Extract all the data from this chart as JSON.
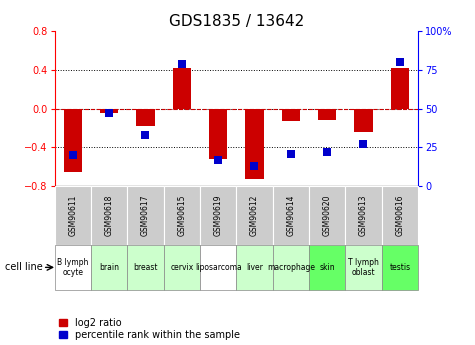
{
  "title": "GDS1835 / 13642",
  "gsm_labels": [
    "GSM90611",
    "GSM90618",
    "GSM90617",
    "GSM90615",
    "GSM90619",
    "GSM90612",
    "GSM90614",
    "GSM90620",
    "GSM90613",
    "GSM90616"
  ],
  "cell_types": [
    "B lymph\nocyte",
    "brain",
    "breast",
    "cervix",
    "liposarcoma",
    "liver",
    "macrophage",
    "skin",
    "T lymph\noblast",
    "testis"
  ],
  "cell_bg_colors": [
    "#ffffff",
    "#ccffcc",
    "#ccffcc",
    "#ccffcc",
    "#ffffff",
    "#ccffcc",
    "#ccffcc",
    "#66ff66",
    "#ccffcc",
    "#66ff66"
  ],
  "log2_ratio": [
    -0.65,
    -0.04,
    -0.18,
    0.42,
    -0.52,
    -0.72,
    -0.13,
    -0.12,
    -0.24,
    0.42
  ],
  "percentile_rank": [
    20,
    47,
    33,
    79,
    17,
    13,
    21,
    22,
    27,
    80
  ],
  "ylim_left": [
    -0.8,
    0.8
  ],
  "ylim_right": [
    0,
    100
  ],
  "left_yticks": [
    -0.8,
    -0.4,
    0.0,
    0.4,
    0.8
  ],
  "right_yticks": [
    0,
    25,
    50,
    75,
    100
  ],
  "bar_color": "#cc0000",
  "dot_color": "#0000cc",
  "zero_line_color": "#cc0000",
  "gsm_bg_color": "#cccccc",
  "bar_width": 0.5,
  "dot_size": 28,
  "title_fontsize": 11,
  "tick_fontsize": 7,
  "label_fontsize": 6
}
